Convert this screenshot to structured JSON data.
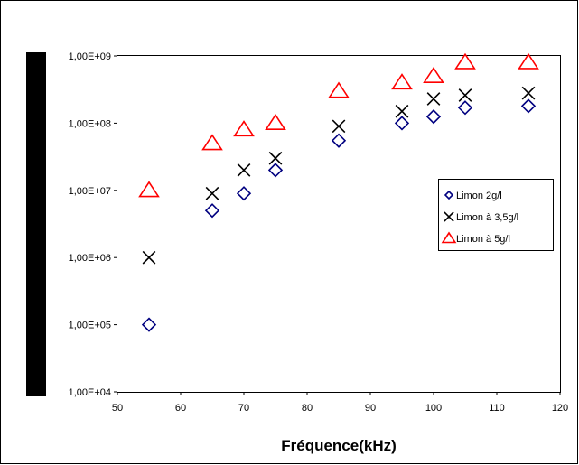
{
  "chart_data": {
    "type": "scatter",
    "title": "",
    "xlabel": "Fréquence(kHz)",
    "ylabel": "",
    "xlim": [
      50,
      120
    ],
    "ylim": [
      10000,
      1000000000
    ],
    "yscale": "log",
    "grid": false,
    "legend_position": "right",
    "x_ticks": [
      "50",
      "60",
      "70",
      "80",
      "90",
      "100",
      "110",
      "120"
    ],
    "y_ticks": [
      "1,00E+04",
      "1,00E+05",
      "1,00E+06",
      "1,00E+07",
      "1,00E+08",
      "1,00E+09"
    ],
    "series": [
      {
        "name": "Limon 2g/l",
        "marker": "diamond",
        "color": "#000080",
        "points": [
          [
            55,
            100000
          ],
          [
            65,
            5000000
          ],
          [
            70,
            9000000
          ],
          [
            75,
            20000000
          ],
          [
            85,
            55000000
          ],
          [
            95,
            100000000
          ],
          [
            100,
            125000000
          ],
          [
            105,
            170000000
          ],
          [
            115,
            180000000
          ]
        ]
      },
      {
        "name": "Limon à 3,5g/l",
        "marker": "x",
        "color": "#000000",
        "points": [
          [
            55,
            1000000
          ],
          [
            65,
            9000000
          ],
          [
            70,
            20000000
          ],
          [
            75,
            30000000
          ],
          [
            85,
            90000000
          ],
          [
            95,
            150000000
          ],
          [
            100,
            230000000
          ],
          [
            105,
            260000000
          ],
          [
            115,
            280000000
          ]
        ]
      },
      {
        "name": "Limon à 5g/l",
        "marker": "triangle",
        "color": "#ff0000",
        "points": [
          [
            55,
            10000000
          ],
          [
            65,
            50000000
          ],
          [
            70,
            80000000
          ],
          [
            75,
            100000000
          ],
          [
            85,
            300000000
          ],
          [
            95,
            400000000
          ],
          [
            100,
            500000000
          ],
          [
            105,
            800000000
          ],
          [
            115,
            800000000
          ]
        ]
      }
    ]
  }
}
